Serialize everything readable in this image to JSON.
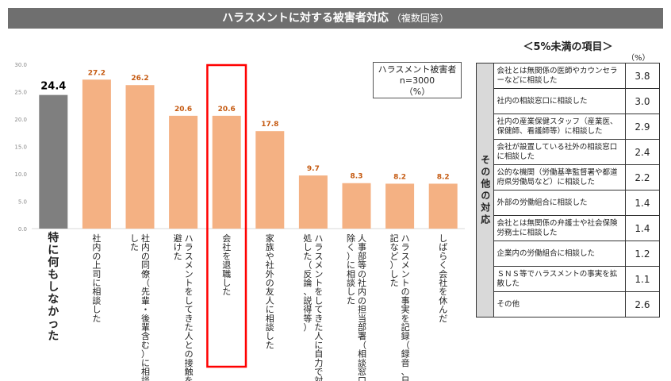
{
  "title": {
    "main": "ハラスメントに対する被害者対応",
    "sub": "（複数回答）"
  },
  "legend": {
    "line1": "ハラスメント被害者",
    "line2": "n=3000",
    "line3": "（%）"
  },
  "chart_data": {
    "type": "bar",
    "ylim": [
      0,
      30
    ],
    "yticks": [
      "0.0",
      "5.0",
      "10.0",
      "15.0",
      "20.0",
      "25.0",
      "30.0"
    ],
    "grid": false,
    "categories": [
      "特に何もしなかった",
      "社内の上司に相談した",
      "社内の同僚（先輩・後輩含む）に相談した",
      "ハラスメントをしてきた人との接触を避けた",
      "会社を退職した",
      "家族や社外の友人に相談した",
      "ハラスメントをしてきた人に自力で対処した（反論、説得等）",
      "人事部等の社内の担当部署（相談窓口除く）に相談した",
      "ハラスメントの事実を記録（録音、日記など）した",
      "しばらく会社を休んだ"
    ],
    "values": [
      24.4,
      27.2,
      26.2,
      20.6,
      20.6,
      17.8,
      9.7,
      8.3,
      8.2,
      8.2
    ],
    "value_labels": [
      "24.4",
      "27.2",
      "26.2",
      "20.6",
      "20.6",
      "17.8",
      "9.7",
      "8.3",
      "8.2",
      "8.2"
    ],
    "highlight_index": 4,
    "colors": {
      "first": "#7f7f7f",
      "bar": "#f4b183",
      "label": "#c55a11",
      "highlight": "#ff0000"
    }
  },
  "side_table": {
    "title": "＜5%未満の項目＞",
    "unit": "（%）",
    "side_label": "その他の対応",
    "rows": [
      {
        "label": "会社とは無関係の医師やカウンセラーなどに相談した",
        "value": "3.8"
      },
      {
        "label": "社内の相談窓口に相談した",
        "value": "3.0"
      },
      {
        "label": "社内の産業保健スタッフ（産業医、保健師、看護師等）に相談した",
        "value": "2.9"
      },
      {
        "label": "会社が設置している社外の相談窓口に相談した",
        "value": "2.4"
      },
      {
        "label": "公的な機関（労働基準監督署や都道府県労働局など）に相談した",
        "value": "2.2"
      },
      {
        "label": "外部の労働組合に相談した",
        "value": "1.4"
      },
      {
        "label": "会社とは無関係の弁護士や社会保険労務士に相談した",
        "value": "1.4"
      },
      {
        "label": "企業内の労働組合に相談した",
        "value": "1.2"
      },
      {
        "label": "ＳＮＳ等でハラスメントの事実を拡散した",
        "value": "1.1"
      },
      {
        "label": "その他",
        "value": "2.6"
      }
    ]
  }
}
